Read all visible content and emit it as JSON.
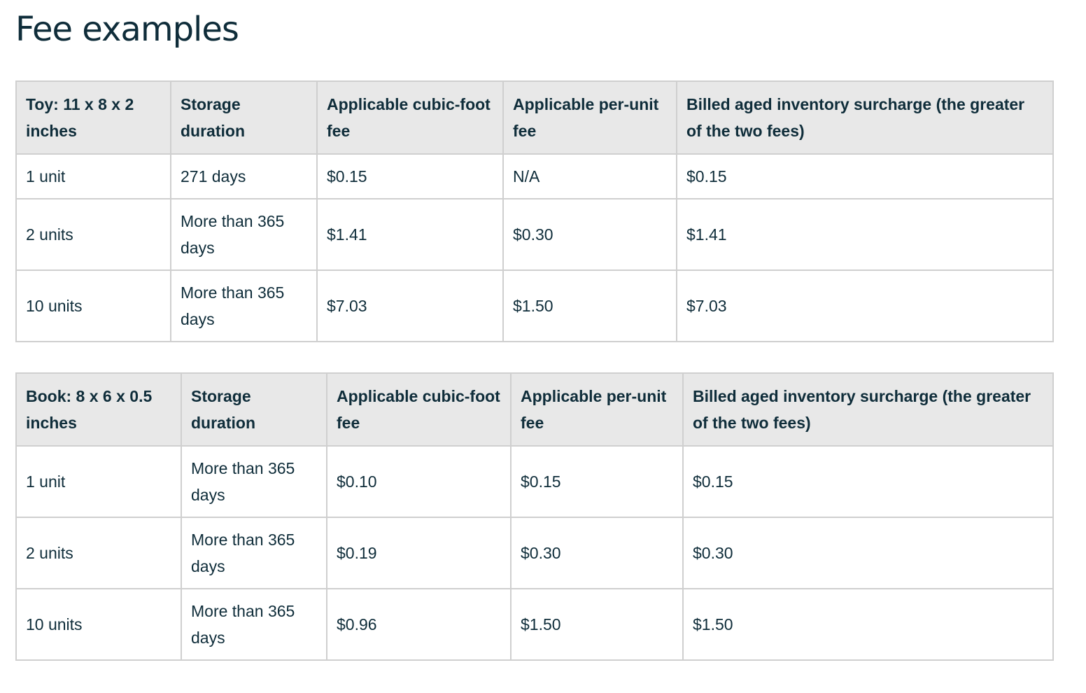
{
  "title": "Fee examples",
  "tables": [
    {
      "headers": [
        "Toy: 11 x 8 x 2 inches",
        "Storage duration",
        "Applicable cubic-foot fee",
        "Applicable per-unit fee",
        "Billed aged inventory surcharge (the greater of the two fees)"
      ],
      "rows": [
        [
          "1 unit",
          "271 days",
          "$0.15",
          "N/A",
          "$0.15"
        ],
        [
          "2 units",
          "More than 365 days",
          "$1.41",
          "$0.30",
          "$1.41"
        ],
        [
          "10 units",
          "More than 365 days",
          "$7.03",
          "$1.50",
          "$7.03"
        ]
      ]
    },
    {
      "headers": [
        "Book: 8 x 6 x 0.5 inches",
        "Storage duration",
        "Applicable cubic-foot fee",
        "Applicable per-unit fee",
        "Billed aged inventory surcharge (the greater of the two fees)"
      ],
      "rows": [
        [
          "1 unit",
          "More than 365 days",
          "$0.10",
          "$0.15",
          "$0.15"
        ],
        [
          "2 units",
          "More than 365 days",
          "$0.19",
          "$0.30",
          "$0.30"
        ],
        [
          "10 units",
          "More than 365 days",
          "$0.96",
          "$1.50",
          "$1.50"
        ]
      ]
    }
  ]
}
